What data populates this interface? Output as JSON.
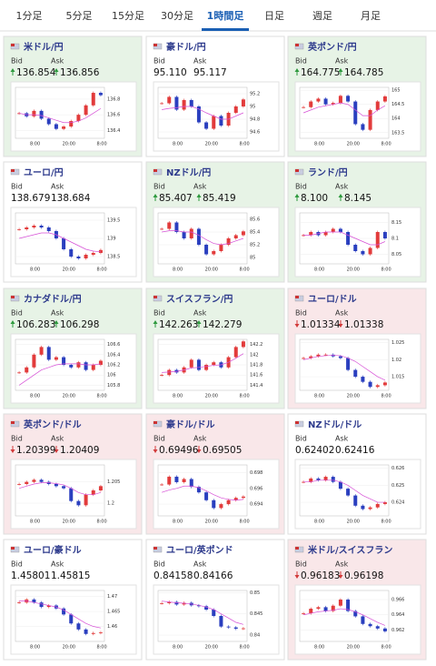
{
  "tabs": [
    "1分足",
    "5分足",
    "15分足",
    "30分足",
    "1時間足",
    "日足",
    "週足",
    "月足"
  ],
  "active_tab": 4,
  "bid_label": "Bid",
  "ask_label": "Ask",
  "chart_time_labels": [
    "8:00",
    "20:00",
    "8:00"
  ],
  "cards": [
    {
      "name": "米ドル/円",
      "trend": "up",
      "bid": "136.854",
      "ask": "136.856",
      "chart": {
        "type": "candlestick",
        "ylim": [
          136.3,
          136.95
        ],
        "yticks": [
          136.8,
          136.6,
          136.4
        ],
        "prices": [
          136.62,
          136.58,
          136.65,
          136.55,
          136.48,
          136.42,
          136.45,
          136.52,
          136.6,
          136.72,
          136.88,
          136.85
        ],
        "ma": [
          136.62,
          136.6,
          136.6,
          136.59,
          136.56,
          136.53,
          136.5,
          136.5,
          136.52,
          136.56,
          136.62,
          136.68
        ]
      }
    },
    {
      "name": "豪ドル/円",
      "trend": "none",
      "bid": "95.110",
      "ask": "95.117",
      "chart": {
        "type": "candlestick",
        "ylim": [
          94.5,
          95.3
        ],
        "yticks": [
          95.2,
          95,
          94.8,
          94.6
        ],
        "prices": [
          95.05,
          95.15,
          94.95,
          95.1,
          95.0,
          94.75,
          94.65,
          94.85,
          94.7,
          94.9,
          95.0,
          95.11
        ],
        "ma": [
          94.95,
          94.97,
          94.98,
          95.0,
          95.0,
          94.96,
          94.9,
          94.85,
          94.8,
          94.8,
          94.85,
          94.9
        ]
      }
    },
    {
      "name": "英ポンド/円",
      "trend": "up",
      "bid": "164.775",
      "ask": "164.785",
      "chart": {
        "type": "candlestick",
        "ylim": [
          163.3,
          165.1
        ],
        "yticks": [
          165,
          164.5,
          164,
          163.5
        ],
        "prices": [
          164.4,
          164.6,
          164.7,
          164.5,
          164.55,
          164.8,
          164.6,
          163.8,
          163.6,
          164.3,
          164.6,
          164.78
        ],
        "ma": [
          164.2,
          164.3,
          164.4,
          164.45,
          164.5,
          164.55,
          164.5,
          164.3,
          164.1,
          164.1,
          164.3,
          164.45
        ]
      }
    },
    {
      "name": "ユーロ/円",
      "trend": "none",
      "bid": "138.679",
      "ask": "138.684",
      "chart": {
        "type": "candlestick",
        "ylim": [
          138.3,
          139.7
        ],
        "yticks": [
          139.5,
          139,
          138.5
        ],
        "prices": [
          139.25,
          139.3,
          139.35,
          139.3,
          139.2,
          139.0,
          138.7,
          138.5,
          138.45,
          138.55,
          138.6,
          138.68
        ],
        "ma": [
          139.0,
          139.05,
          139.1,
          139.15,
          139.15,
          139.1,
          139.0,
          138.9,
          138.8,
          138.7,
          138.65,
          138.63
        ]
      }
    },
    {
      "name": "NZドル/円",
      "trend": "up",
      "bid": "85.407",
      "ask": "85.419",
      "chart": {
        "type": "candlestick",
        "ylim": [
          84.9,
          85.7
        ],
        "yticks": [
          85.6,
          85.4,
          85.2,
          85
        ],
        "prices": [
          85.45,
          85.55,
          85.4,
          85.3,
          85.45,
          85.2,
          85.05,
          85.1,
          85.2,
          85.3,
          85.35,
          85.41
        ],
        "ma": [
          85.4,
          85.42,
          85.42,
          85.4,
          85.4,
          85.35,
          85.28,
          85.22,
          85.2,
          85.22,
          85.26,
          85.3
        ]
      }
    },
    {
      "name": "ランド/円",
      "trend": "up",
      "bid": "8.100",
      "ask": "8.145",
      "chart": {
        "type": "candlestick",
        "ylim": [
          8.02,
          8.18
        ],
        "yticks": [
          8.15,
          8.1,
          8.05
        ],
        "prices": [
          8.11,
          8.12,
          8.11,
          8.12,
          8.13,
          8.12,
          8.08,
          8.06,
          8.05,
          8.07,
          8.12,
          8.1
        ],
        "ma": [
          8.11,
          8.11,
          8.115,
          8.12,
          8.12,
          8.12,
          8.11,
          8.1,
          8.09,
          8.08,
          8.08,
          8.09
        ]
      }
    },
    {
      "name": "カナダドル/円",
      "trend": "up",
      "bid": "106.283",
      "ask": "106.298",
      "chart": {
        "type": "candlestick",
        "ylim": [
          105.7,
          106.7
        ],
        "yticks": [
          106.6,
          106.4,
          106.2,
          106,
          105.8
        ],
        "prices": [
          106.05,
          106.15,
          106.4,
          106.55,
          106.3,
          106.35,
          106.2,
          106.15,
          106.25,
          106.1,
          106.2,
          106.28
        ],
        "ma": [
          105.8,
          105.9,
          106.0,
          106.1,
          106.15,
          106.2,
          106.22,
          106.22,
          106.22,
          106.2,
          106.2,
          106.22
        ]
      }
    },
    {
      "name": "スイスフラン/円",
      "trend": "up",
      "bid": "142.263",
      "ask": "142.279",
      "chart": {
        "type": "candlestick",
        "ylim": [
          141.3,
          142.3
        ],
        "yticks": [
          142.2,
          142,
          141.8,
          141.6,
          141.4
        ],
        "prices": [
          141.6,
          141.7,
          141.65,
          141.75,
          141.9,
          141.7,
          141.8,
          141.85,
          141.75,
          141.95,
          142.15,
          142.26
        ],
        "ma": [
          141.65,
          141.66,
          141.67,
          141.7,
          141.74,
          141.75,
          141.77,
          141.79,
          141.8,
          141.85,
          141.93,
          142.02
        ]
      }
    },
    {
      "name": "ユーロ/ドル",
      "trend": "down",
      "bid": "1.01334",
      "ask": "1.01338",
      "chart": {
        "type": "candlestick",
        "ylim": [
          1.011,
          1.026
        ],
        "yticks": [
          1.025,
          1.02,
          1.015
        ],
        "prices": [
          1.0205,
          1.021,
          1.0215,
          1.0215,
          1.021,
          1.0205,
          1.017,
          1.015,
          1.0135,
          1.012,
          1.0125,
          1.0133
        ],
        "ma": [
          1.02,
          1.0205,
          1.021,
          1.0212,
          1.0213,
          1.0212,
          1.0205,
          1.0195,
          1.018,
          1.0165,
          1.015,
          1.014
        ]
      }
    },
    {
      "name": "英ポンド/ドル",
      "trend": "down",
      "bid": "1.20399",
      "ask": "1.20409",
      "chart": {
        "type": "candlestick",
        "ylim": [
          1.197,
          1.209
        ],
        "yticks": [
          1.205,
          1.2
        ],
        "prices": [
          1.2045,
          1.205,
          1.2055,
          1.205,
          1.2045,
          1.204,
          1.2035,
          1.2005,
          1.1995,
          1.202,
          1.203,
          1.204
        ],
        "ma": [
          1.2035,
          1.204,
          1.2045,
          1.2048,
          1.2048,
          1.2046,
          1.2043,
          1.2035,
          1.2025,
          1.202,
          1.202,
          1.2025
        ]
      }
    },
    {
      "name": "豪ドル/ドル",
      "trend": "down",
      "bid": "0.69496",
      "ask": "0.69505",
      "chart": {
        "type": "candlestick",
        "ylim": [
          0.6925,
          0.699
        ],
        "yticks": [
          0.698,
          0.696,
          0.694
        ],
        "prices": [
          0.6965,
          0.6975,
          0.6968,
          0.6972,
          0.6962,
          0.6955,
          0.6945,
          0.6935,
          0.694,
          0.6945,
          0.6948,
          0.69496
        ],
        "ma": [
          0.6955,
          0.6958,
          0.696,
          0.6963,
          0.6963,
          0.6961,
          0.6957,
          0.6952,
          0.6948,
          0.6946,
          0.6945,
          0.6946
        ]
      }
    },
    {
      "name": "NZドル/ドル",
      "trend": "none",
      "bid": "0.62402",
      "ask": "0.62416",
      "chart": {
        "type": "candlestick",
        "ylim": [
          0.6232,
          0.6262
        ],
        "yticks": [
          0.626,
          0.625,
          0.624
        ],
        "prices": [
          0.6252,
          0.6254,
          0.6253,
          0.6255,
          0.6252,
          0.6248,
          0.6244,
          0.6238,
          0.6236,
          0.6237,
          0.6239,
          0.624
        ],
        "ma": [
          0.6252,
          0.6252,
          0.6253,
          0.6253,
          0.6253,
          0.6252,
          0.625,
          0.6247,
          0.6244,
          0.6242,
          0.624,
          0.624
        ]
      }
    },
    {
      "name": "ユーロ/豪ドル",
      "trend": "none",
      "bid": "1.45801",
      "ask": "1.45815",
      "chart": {
        "type": "candlestick",
        "ylim": [
          1.455,
          1.472
        ],
        "yticks": [
          1.47,
          1.465,
          1.46
        ],
        "prices": [
          1.468,
          1.469,
          1.468,
          1.4665,
          1.467,
          1.466,
          1.464,
          1.461,
          1.459,
          1.4575,
          1.4578,
          1.458
        ],
        "ma": [
          1.4685,
          1.4685,
          1.468,
          1.4675,
          1.467,
          1.4665,
          1.4655,
          1.464,
          1.4625,
          1.461,
          1.46,
          1.4595
        ]
      }
    },
    {
      "name": "ユーロ/英ポンド",
      "trend": "none",
      "bid": "0.84158",
      "ask": "0.84166",
      "chart": {
        "type": "candlestick",
        "ylim": [
          0.8385,
          0.8505
        ],
        "yticks": [
          0.85,
          0.845,
          0.84
        ],
        "prices": [
          0.8475,
          0.8478,
          0.8472,
          0.8476,
          0.847,
          0.8468,
          0.846,
          0.8445,
          0.842,
          0.8418,
          0.8415,
          0.84158
        ],
        "ma": [
          0.848,
          0.8478,
          0.8476,
          0.8475,
          0.8473,
          0.847,
          0.8466,
          0.846,
          0.845,
          0.844,
          0.843,
          0.8425
        ]
      }
    },
    {
      "name": "米ドル/スイスフラン",
      "trend": "down",
      "bid": "0.96183",
      "ask": "0.96198",
      "chart": {
        "type": "candlestick",
        "ylim": [
          0.9605,
          0.9672
        ],
        "yticks": [
          0.966,
          0.964,
          0.962
        ],
        "prices": [
          0.9642,
          0.9648,
          0.965,
          0.9645,
          0.9652,
          0.966,
          0.9645,
          0.9638,
          0.9628,
          0.9625,
          0.9622,
          0.96183
        ],
        "ma": [
          0.964,
          0.9642,
          0.9644,
          0.9645,
          0.9646,
          0.9648,
          0.9647,
          0.9644,
          0.964,
          0.9635,
          0.963,
          0.9626
        ]
      }
    }
  ]
}
